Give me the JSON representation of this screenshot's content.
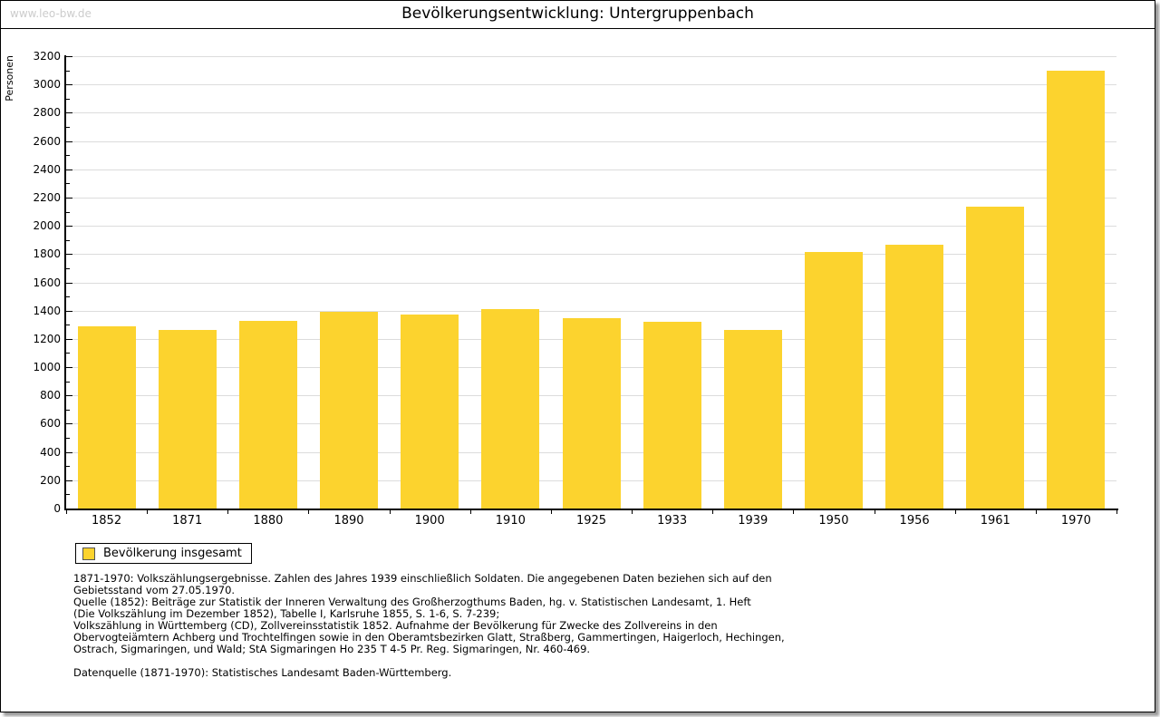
{
  "watermark": "www.leo-bw.de",
  "legend": {
    "label": "Bevölkerung insgesamt"
  },
  "chart_data": {
    "type": "bar",
    "title": "Bevölkerungsentwicklung: Untergruppenbach",
    "ylabel": "Personen",
    "xlabel": "",
    "ylim": [
      0,
      3200
    ],
    "ytick_step": 200,
    "yminor_step": 100,
    "grid": true,
    "legend_position": "bottom-left",
    "bar_color": "#fcd32e",
    "categories": [
      "1852",
      "1871",
      "1880",
      "1890",
      "1900",
      "1910",
      "1925",
      "1933",
      "1939",
      "1950",
      "1956",
      "1961",
      "1970"
    ],
    "series": [
      {
        "name": "Bevölkerung insgesamt",
        "values": [
          1287,
          1265,
          1327,
          1390,
          1373,
          1410,
          1348,
          1322,
          1264,
          1818,
          1866,
          2135,
          3095
        ]
      }
    ]
  },
  "footnotes": {
    "lines": [
      "1871-1970: Volkszählungsergebnisse. Zahlen des Jahres 1939 einschließlich Soldaten. Die angegebenen Daten beziehen sich auf den",
      "Gebietsstand vom 27.05.1970.",
      "Quelle (1852): Beiträge zur Statistik der Inneren Verwaltung des Großherzogthums Baden, hg. v. Statistischen Landesamt, 1. Heft",
      "(Die Volkszählung im Dezember 1852), Tabelle I, Karlsruhe 1855, S. 1-6, S. 7-239;",
      "Volkszählung in Württemberg (CD), Zollvereinsstatistik 1852. Aufnahme der Bevölkerung für Zwecke des Zollvereins in den",
      "Obervogteiämtern Achberg und Trochtelfingen sowie in den Oberamtsbezirken Glatt, Straßberg, Gammertingen, Haigerloch, Hechingen,",
      "Ostrach, Sigmaringen, und Wald; StA Sigmaringen Ho 235 T 4-5 Pr. Reg. Sigmaringen, Nr. 460-469."
    ],
    "datasource": "Datenquelle (1871-1970): Statistisches Landesamt Baden-Württemberg."
  }
}
